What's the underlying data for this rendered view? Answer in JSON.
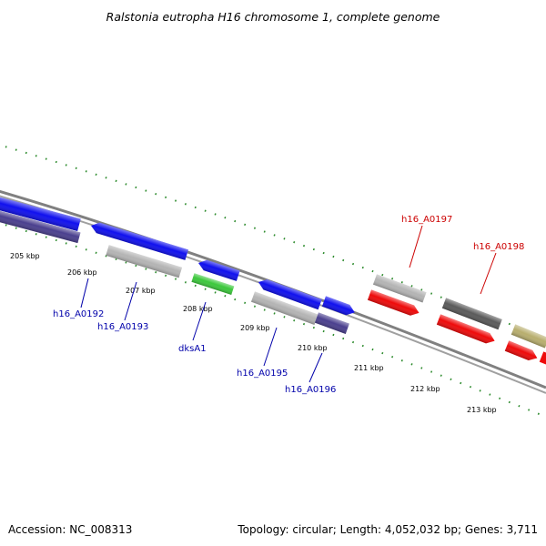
{
  "title": "Ralstonia eutropha H16 chromosome 1, complete genome",
  "footer": {
    "accession": "Accession: NC_008313",
    "summary": "Topology: circular; Length: 4,052,032 bp; Genes: 3,711"
  },
  "colors": {
    "blue": "#1010ee",
    "slate": "#4a3f8e",
    "grey": "#b4b4b4",
    "dark_grey": "#5a5a5a",
    "green": "#3cc83c",
    "red": "#ee0a0a",
    "olive": "#b8ae6e",
    "tick": "#2a8a2a",
    "label_blue": "#0000aa",
    "label_red": "#cc0000"
  },
  "ticks": [
    {
      "label": "205 kbp"
    },
    {
      "label": "206 kbp"
    },
    {
      "label": "207 kbp"
    },
    {
      "label": "208 kbp"
    },
    {
      "label": "209 kbp"
    },
    {
      "label": "210 kbp"
    },
    {
      "label": "211 kbp"
    },
    {
      "label": "212 kbp"
    },
    {
      "label": "213 kbp"
    }
  ],
  "gene_labels": [
    {
      "text": "h16_A0192",
      "color": "label_blue"
    },
    {
      "text": "h16_A0193",
      "color": "label_blue"
    },
    {
      "text": "dksA1",
      "color": "label_blue"
    },
    {
      "text": "h16_A0195",
      "color": "label_blue"
    },
    {
      "text": "h16_A0196",
      "color": "label_blue"
    },
    {
      "text": "h16_A0197",
      "color": "label_red"
    },
    {
      "text": "h16_A0198",
      "color": "label_red"
    }
  ]
}
